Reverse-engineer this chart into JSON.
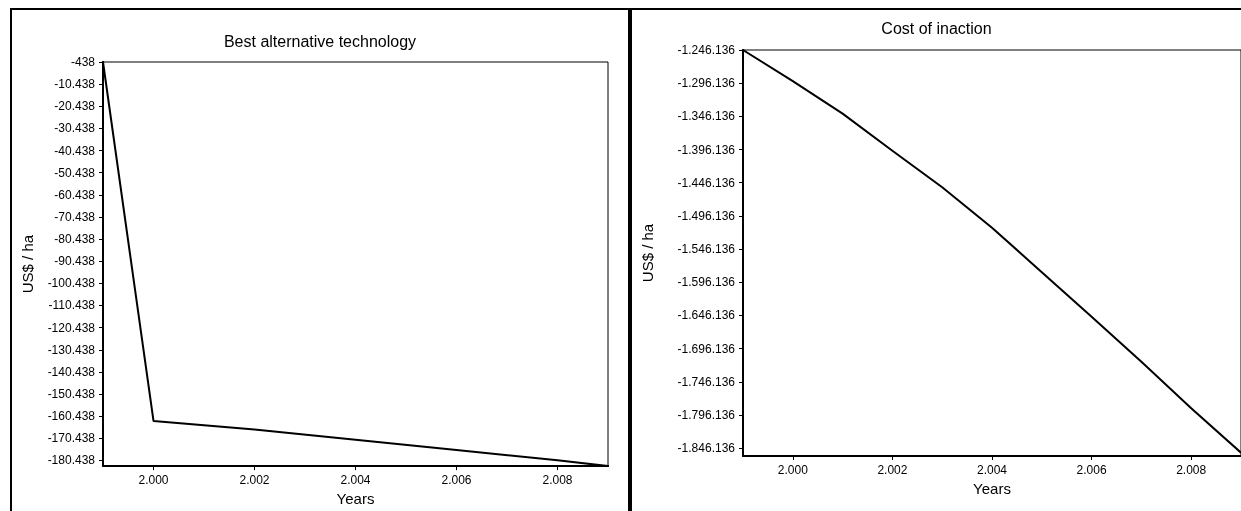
{
  "chart_data": [
    {
      "type": "line",
      "title": "Best alternative technology",
      "xlabel": "Years",
      "ylabel": "US$ / ha",
      "x": [
        1999,
        2000,
        2002,
        2004,
        2006,
        2008,
        2009
      ],
      "series": [
        {
          "color": "#000000",
          "values": [
            -438,
            -162600,
            -166500,
            -171100,
            -175700,
            -180400,
            -183000
          ]
        }
      ],
      "xlim": [
        1999,
        2009
      ],
      "xticks": [
        {
          "value": 2000,
          "label": "2.000"
        },
        {
          "value": 2002,
          "label": "2.002"
        },
        {
          "value": 2004,
          "label": "2.004"
        },
        {
          "value": 2006,
          "label": "2.006"
        },
        {
          "value": 2008,
          "label": "2.008"
        }
      ],
      "ylim": [
        -183000,
        -438
      ],
      "yticks": [
        -438,
        {
          "value": -10438,
          "label": "-10.438"
        },
        {
          "value": -20438,
          "label": "-20.438"
        },
        {
          "value": -30438,
          "label": "-30.438"
        },
        {
          "value": -40438,
          "label": "-40.438"
        },
        {
          "value": -50438,
          "label": "-50.438"
        },
        {
          "value": -60438,
          "label": "-60.438"
        },
        {
          "value": -70438,
          "label": "-70.438"
        },
        {
          "value": -80438,
          "label": "-80.438"
        },
        {
          "value": -90438,
          "label": "-90.438"
        },
        {
          "value": -100438,
          "label": "-100.438"
        },
        {
          "value": -110438,
          "label": "-110.438"
        },
        {
          "value": -120438,
          "label": "-120.438"
        },
        {
          "value": -130438,
          "label": "-130.438"
        },
        {
          "value": -140438,
          "label": "-140.438"
        },
        {
          "value": -150438,
          "label": "-150.438"
        },
        {
          "value": -160438,
          "label": "-160.438"
        },
        {
          "value": -170438,
          "label": "-170.438"
        },
        {
          "value": -180438,
          "label": "-180.438"
        }
      ],
      "grid": false,
      "marker": "none",
      "line_style": "solid"
    },
    {
      "type": "line",
      "title": "Cost of inaction",
      "xlabel": "Years",
      "ylabel": "US$ / ha",
      "x": [
        1999,
        2000,
        2001,
        2002,
        2003,
        2004,
        2005,
        2006,
        2007,
        2008,
        2009
      ],
      "series": [
        {
          "color": "#000000",
          "values": [
            -1246136,
            -1293000,
            -1342000,
            -1398000,
            -1453000,
            -1514000,
            -1581000,
            -1648000,
            -1716000,
            -1786000,
            -1853000
          ]
        }
      ],
      "xlim": [
        1999,
        2009
      ],
      "xticks": [
        {
          "value": 2000,
          "label": "2.000"
        },
        {
          "value": 2002,
          "label": "2.002"
        },
        {
          "value": 2004,
          "label": "2.004"
        },
        {
          "value": 2006,
          "label": "2.006"
        },
        {
          "value": 2008,
          "label": "2.008"
        }
      ],
      "ylim": [
        -1858000,
        -1246136
      ],
      "yticks": [
        {
          "value": -1246136,
          "label": "-1.246.136"
        },
        {
          "value": -1296136,
          "label": "-1.296.136"
        },
        {
          "value": -1346136,
          "label": "-1.346.136"
        },
        {
          "value": -1396136,
          "label": "-1.396.136"
        },
        {
          "value": -1446136,
          "label": "-1.446.136"
        },
        {
          "value": -1496136,
          "label": "-1.496.136"
        },
        {
          "value": -1546136,
          "label": "-1.546.136"
        },
        {
          "value": -1596136,
          "label": "-1.596.136"
        },
        {
          "value": -1646136,
          "label": "-1.646.136"
        },
        {
          "value": -1696136,
          "label": "-1.696.136"
        },
        {
          "value": -1746136,
          "label": "-1.746.136"
        },
        {
          "value": -1796136,
          "label": "-1.796.136"
        },
        {
          "value": -1846136,
          "label": "-1.846.136"
        }
      ],
      "grid": false,
      "marker": "none",
      "line_style": "solid"
    }
  ]
}
